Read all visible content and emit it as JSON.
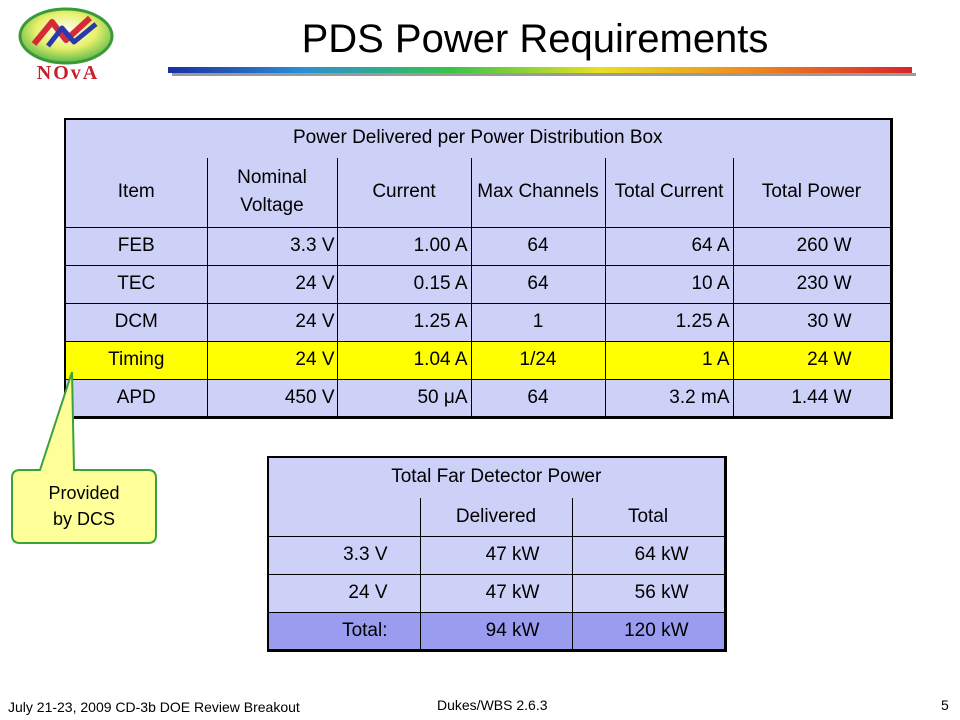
{
  "slide": {
    "title": "PDS Power Requirements",
    "logo_text": "NOvA"
  },
  "power_table": {
    "caption": "Power Delivered per Power Distribution Box",
    "columns": [
      "Item",
      "Nominal Voltage",
      "Current",
      "Max Channels",
      "Total Current",
      "Total Power"
    ],
    "rows": [
      {
        "item": "FEB",
        "voltage": "3.3 V",
        "current": "1.00 A",
        "channels": "64",
        "total_current": "64 A",
        "total_power": "260 W",
        "highlight": false
      },
      {
        "item": "TEC",
        "voltage": "24 V",
        "current": "0.15 A",
        "channels": "64",
        "total_current": "10 A",
        "total_power": "230 W",
        "highlight": false
      },
      {
        "item": "DCM",
        "voltage": "24 V",
        "current": "1.25 A",
        "channels": "1",
        "total_current": "1.25 A",
        "total_power": "30 W",
        "highlight": false
      },
      {
        "item": "Timing",
        "voltage": "24 V",
        "current": "1.04 A",
        "channels": "1/24",
        "total_current": "1 A",
        "total_power": "24 W",
        "highlight": true
      },
      {
        "item": "APD",
        "voltage": "450 V",
        "current": "50 μA",
        "channels": "64",
        "total_current": "3.2 mA",
        "total_power": "1.44 W",
        "highlight": false
      }
    ],
    "colors": {
      "cell": "#cdd0f7",
      "highlight": "#ffff00"
    }
  },
  "callout": {
    "line1": "Provided",
    "line2": "by DCS",
    "color": "#ffff99"
  },
  "far_table": {
    "caption": "Total Far Detector Power",
    "columns": [
      "",
      "Delivered",
      "Total"
    ],
    "rows": [
      {
        "label": "3.3 V",
        "delivered": "47 kW",
        "total": "64 kW"
      },
      {
        "label": "24 V",
        "delivered": "47 kW",
        "total": "56 kW"
      }
    ],
    "total_row": {
      "label": "Total:",
      "delivered": "94 kW",
      "total": "120 kW"
    },
    "colors": {
      "cell": "#cdd0f7",
      "total": "#9a9cf0"
    }
  },
  "footer": {
    "left": "July 21-23, 2009 CD-3b DOE Review Breakout",
    "center": "Dukes/WBS 2.6.3",
    "page": "5"
  }
}
